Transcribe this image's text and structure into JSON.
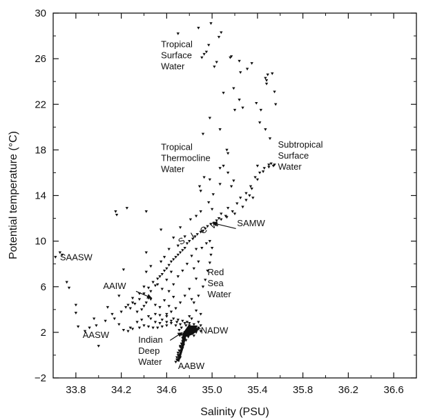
{
  "chart_data": {
    "type": "scatter",
    "title": "",
    "xlabel": "Salinity (PSU)",
    "ylabel": "Potential temperature (°C)",
    "xlim": [
      33.6,
      36.8
    ],
    "ylim": [
      -2,
      30
    ],
    "xticks": [
      33.8,
      34.2,
      34.6,
      35.0,
      35.4,
      35.8,
      36.2,
      36.6
    ],
    "xtick_labels": [
      "33.8",
      "34.2",
      "34.6",
      "35.0",
      "35.4",
      "35.8",
      "36.2",
      "36.6"
    ],
    "yticks": [
      -2,
      2,
      6,
      10,
      14,
      18,
      22,
      26,
      30
    ],
    "ytick_labels": [
      "−2",
      "2",
      "6",
      "10",
      "14",
      "18",
      "22",
      "26",
      "30"
    ],
    "grid": false,
    "marker_color": "#111111",
    "annotations": [
      {
        "lines": [
          "Tropical",
          "Surface",
          "Water"
        ],
        "x": 34.55,
        "y": 27.0,
        "anchor": "start"
      },
      {
        "lines": [
          "Tropical",
          "Thermocline",
          "Water"
        ],
        "x": 34.55,
        "y": 18.0,
        "anchor": "start"
      },
      {
        "lines": [
          "Subtropical",
          "Surface",
          "Water"
        ],
        "x": 35.58,
        "y": 18.2,
        "anchor": "start"
      },
      {
        "lines": [
          "SAMW"
        ],
        "x": 35.22,
        "y": 11.3,
        "anchor": "start"
      },
      {
        "lines": [
          "SAASW"
        ],
        "x": 33.66,
        "y": 8.3,
        "anchor": "start"
      },
      {
        "lines": [
          "AAIW"
        ],
        "x": 34.04,
        "y": 5.8,
        "anchor": "start"
      },
      {
        "lines": [
          "Red",
          "Sea",
          "Water"
        ],
        "x": 34.96,
        "y": 7.0,
        "anchor": "start"
      },
      {
        "lines": [
          "AASW"
        ],
        "x": 33.86,
        "y": 1.5,
        "anchor": "start"
      },
      {
        "lines": [
          "Indian",
          "Deep",
          "Water"
        ],
        "x": 34.35,
        "y": 1.1,
        "anchor": "start"
      },
      {
        "lines": [
          "NADW"
        ],
        "x": 34.9,
        "y": 1.9,
        "anchor": "start"
      },
      {
        "lines": [
          "AABW"
        ],
        "x": 34.7,
        "y": -1.2,
        "anchor": "start"
      },
      {
        "lines": [
          "S",
          "I",
          "C",
          "W"
        ],
        "x": 34.78,
        "y": 10.5,
        "anchor": "middle",
        "rotated": true
      }
    ],
    "arrows": [
      {
        "from": [
          35.21,
          11.1
        ],
        "to": [
          35.0,
          11.6
        ]
      },
      {
        "from": [
          34.33,
          5.6
        ],
        "to": [
          34.47,
          5.0
        ]
      },
      {
        "from": [
          34.9,
          2.3
        ],
        "to": [
          34.82,
          2.4
        ]
      },
      {
        "from": [
          34.63,
          1.3
        ],
        "to": [
          34.74,
          2.0
        ]
      }
    ],
    "points": [
      [
        34.88,
        28.7
      ],
      [
        34.7,
        28.2
      ],
      [
        34.99,
        29.1
      ],
      [
        34.97,
        27.2
      ],
      [
        35.08,
        28.3
      ],
      [
        35.06,
        27.9
      ],
      [
        34.93,
        26.4
      ],
      [
        34.95,
        26.6
      ],
      [
        34.91,
        26.1
      ],
      [
        35.04,
        25.7
      ],
      [
        35.02,
        25.3
      ],
      [
        35.16,
        26.1
      ],
      [
        35.17,
        26.2
      ],
      [
        35.24,
        25.8
      ],
      [
        35.31,
        25.1
      ],
      [
        35.35,
        25.6
      ],
      [
        35.25,
        24.8
      ],
      [
        35.19,
        23.4
      ],
      [
        35.1,
        23.0
      ],
      [
        35.24,
        22.4
      ],
      [
        35.27,
        21.7
      ],
      [
        35.2,
        21.5
      ],
      [
        35.39,
        22.1
      ],
      [
        35.43,
        21.5
      ],
      [
        35.47,
        24.3
      ],
      [
        35.48,
        24.1
      ],
      [
        35.48,
        23.8
      ],
      [
        35.49,
        24.6
      ],
      [
        35.53,
        24.7
      ],
      [
        35.55,
        23.1
      ],
      [
        35.56,
        22.0
      ],
      [
        35.42,
        20.4
      ],
      [
        35.47,
        19.8
      ],
      [
        35.51,
        19.0
      ],
      [
        34.98,
        20.8
      ],
      [
        34.92,
        19.4
      ],
      [
        35.07,
        19.8
      ],
      [
        35.13,
        18.0
      ],
      [
        35.14,
        17.7
      ],
      [
        35.07,
        16.4
      ],
      [
        35.1,
        16.6
      ],
      [
        35.14,
        16.0
      ],
      [
        35.07,
        15.0
      ],
      [
        35.17,
        14.8
      ],
      [
        35.19,
        15.3
      ],
      [
        35.4,
        16.6
      ],
      [
        35.45,
        16.1
      ],
      [
        35.5,
        16.7
      ],
      [
        35.52,
        16.8
      ],
      [
        35.55,
        16.7
      ],
      [
        35.4,
        15.4
      ],
      [
        35.35,
        14.6
      ],
      [
        35.33,
        14.0
      ],
      [
        35.3,
        13.6
      ],
      [
        35.36,
        13.8
      ],
      [
        35.27,
        13.0
      ],
      [
        35.2,
        12.4
      ],
      [
        35.12,
        12.2
      ],
      [
        35.08,
        11.9
      ],
      [
        35.06,
        12.0
      ],
      [
        35.02,
        11.6
      ],
      [
        34.96,
        11.3
      ],
      [
        34.94,
        11.1
      ],
      [
        34.9,
        10.8
      ],
      [
        34.85,
        10.4
      ],
      [
        34.8,
        10.0
      ],
      [
        34.76,
        9.4
      ],
      [
        34.72,
        9.0
      ],
      [
        34.68,
        8.6
      ],
      [
        34.64,
        8.2
      ],
      [
        34.6,
        7.6
      ],
      [
        34.56,
        7.1
      ],
      [
        34.52,
        6.7
      ],
      [
        34.5,
        6.1
      ],
      [
        34.46,
        5.6
      ],
      [
        34.44,
        5.0
      ],
      [
        34.42,
        4.6
      ],
      [
        34.4,
        4.3
      ],
      [
        34.38,
        4.0
      ],
      [
        34.9,
        12.6
      ],
      [
        34.97,
        13.4
      ],
      [
        35.01,
        14.1
      ],
      [
        34.9,
        14.4
      ],
      [
        34.89,
        14.8
      ],
      [
        34.98,
        15.4
      ],
      [
        34.93,
        15.6
      ],
      [
        35.0,
        12.8
      ],
      [
        34.86,
        12.2
      ],
      [
        34.81,
        11.9
      ],
      [
        34.72,
        11.2
      ],
      [
        34.76,
        10.4
      ],
      [
        34.66,
        10.3
      ],
      [
        34.7,
        9.6
      ],
      [
        34.62,
        9.3
      ],
      [
        34.58,
        8.6
      ],
      [
        34.55,
        8.2
      ],
      [
        34.46,
        7.8
      ],
      [
        34.42,
        7.3
      ],
      [
        34.52,
        6.2
      ],
      [
        34.4,
        6.0
      ],
      [
        34.36,
        5.4
      ],
      [
        34.3,
        5.0
      ],
      [
        34.3,
        4.6
      ],
      [
        34.24,
        4.2
      ],
      [
        34.2,
        3.8
      ],
      [
        34.12,
        3.6
      ],
      [
        34.06,
        3.0
      ],
      [
        33.98,
        2.6
      ],
      [
        33.96,
        3.2
      ],
      [
        33.92,
        2.4
      ],
      [
        33.88,
        2.1
      ],
      [
        33.82,
        2.5
      ],
      [
        33.8,
        3.7
      ],
      [
        33.8,
        4.4
      ],
      [
        33.74,
        5.9
      ],
      [
        33.72,
        6.4
      ],
      [
        33.68,
        8.8
      ],
      [
        33.66,
        9.0
      ],
      [
        33.62,
        8.6
      ],
      [
        34.0,
        0.8
      ],
      [
        34.08,
        4.2
      ],
      [
        34.14,
        3.2
      ],
      [
        34.18,
        2.7
      ],
      [
        34.22,
        2.2
      ],
      [
        34.28,
        2.4
      ],
      [
        34.34,
        2.9
      ],
      [
        34.38,
        3.1
      ],
      [
        34.44,
        3.4
      ],
      [
        34.5,
        3.6
      ],
      [
        34.54,
        3.5
      ],
      [
        34.6,
        3.4
      ],
      [
        34.66,
        3.2
      ],
      [
        34.7,
        3.1
      ],
      [
        34.74,
        3.0
      ],
      [
        34.78,
        2.9
      ],
      [
        34.8,
        2.8
      ],
      [
        34.84,
        2.7
      ],
      [
        34.86,
        2.5
      ],
      [
        34.88,
        2.3
      ],
      [
        34.9,
        2.1
      ],
      [
        34.76,
        2.0
      ],
      [
        34.75,
        1.6
      ],
      [
        34.74,
        1.2
      ],
      [
        34.72,
        0.8
      ],
      [
        34.71,
        0.4
      ],
      [
        34.7,
        0.0
      ],
      [
        34.69,
        -0.4
      ],
      [
        34.68,
        -0.6
      ],
      [
        34.73,
        1.8
      ],
      [
        34.78,
        2.2
      ],
      [
        34.82,
        2.5
      ],
      [
        34.86,
        2.0
      ],
      [
        34.84,
        1.7
      ],
      [
        34.8,
        1.9
      ],
      [
        34.77,
        2.6
      ],
      [
        34.73,
        2.4
      ],
      [
        34.71,
        2.2
      ],
      [
        34.69,
        2.9
      ],
      [
        34.64,
        2.8
      ],
      [
        34.6,
        2.6
      ],
      [
        34.56,
        2.5
      ],
      [
        34.52,
        2.4
      ],
      [
        34.48,
        2.4
      ],
      [
        34.44,
        2.5
      ],
      [
        34.4,
        2.6
      ],
      [
        34.36,
        2.4
      ],
      [
        34.3,
        2.3
      ],
      [
        34.26,
        2.1
      ],
      [
        34.54,
        4.2
      ],
      [
        34.58,
        4.8
      ],
      [
        34.62,
        5.6
      ],
      [
        34.66,
        6.2
      ],
      [
        34.7,
        6.9
      ],
      [
        34.74,
        7.4
      ],
      [
        34.78,
        8.0
      ],
      [
        34.82,
        8.7
      ],
      [
        34.86,
        9.3
      ],
      [
        34.84,
        7.6
      ],
      [
        34.86,
        6.7
      ],
      [
        34.8,
        5.8
      ],
      [
        34.76,
        5.2
      ],
      [
        34.72,
        4.6
      ],
      [
        34.68,
        4.1
      ],
      [
        34.64,
        3.8
      ],
      [
        34.6,
        3.6
      ],
      [
        34.84,
        4.6
      ],
      [
        34.88,
        5.2
      ],
      [
        34.92,
        6.0
      ],
      [
        34.94,
        6.6
      ],
      [
        34.96,
        7.4
      ],
      [
        34.98,
        8.1
      ],
      [
        34.99,
        8.8
      ],
      [
        35.0,
        9.4
      ],
      [
        34.98,
        10.0
      ],
      [
        34.95,
        9.8
      ],
      [
        34.91,
        9.4
      ],
      [
        34.88,
        8.2
      ],
      [
        34.82,
        4.9
      ],
      [
        34.86,
        3.9
      ],
      [
        34.9,
        3.6
      ],
      [
        34.8,
        3.4
      ],
      [
        34.5,
        4.4
      ],
      [
        34.46,
        4.9
      ],
      [
        34.56,
        5.8
      ],
      [
        34.6,
        6.6
      ],
      [
        34.64,
        7.3
      ],
      [
        34.66,
        5.1
      ],
      [
        34.62,
        4.3
      ],
      [
        34.56,
        3.1
      ],
      [
        34.16,
        12.3
      ],
      [
        34.15,
        12.6
      ],
      [
        34.25,
        12.9
      ],
      [
        34.42,
        12.6
      ],
      [
        34.42,
        9.0
      ],
      [
        34.55,
        11.0
      ],
      [
        34.22,
        7.5
      ],
      [
        34.18,
        5.2
      ],
      [
        34.26,
        4.4
      ],
      [
        34.34,
        3.8
      ],
      [
        34.46,
        3.2
      ],
      [
        34.5,
        2.9
      ],
      [
        34.54,
        2.8
      ],
      [
        34.82,
        3.2
      ],
      [
        34.88,
        2.9
      ],
      [
        34.9,
        2.6
      ],
      [
        34.76,
        1.4
      ],
      [
        34.74,
        0.6
      ],
      [
        34.72,
        -0.2
      ],
      [
        35.08,
        12.4
      ],
      [
        35.14,
        12.9
      ],
      [
        35.22,
        13.3
      ],
      [
        35.25,
        13.8
      ],
      [
        35.3,
        14.2
      ],
      [
        35.34,
        14.8
      ],
      [
        35.38,
        15.6
      ],
      [
        35.42,
        16.0
      ],
      [
        35.46,
        16.4
      ],
      [
        35.5,
        16.5
      ],
      [
        35.54,
        16.6
      ],
      [
        35.18,
        12.6
      ],
      [
        35.13,
        12.1
      ],
      [
        35.04,
        11.8
      ],
      [
        34.99,
        11.5
      ],
      [
        34.92,
        10.9
      ],
      [
        34.87,
        10.6
      ],
      [
        34.83,
        10.2
      ],
      [
        34.78,
        9.8
      ],
      [
        34.74,
        9.2
      ],
      [
        34.7,
        8.8
      ],
      [
        34.66,
        8.4
      ],
      [
        34.62,
        7.9
      ],
      [
        34.58,
        7.4
      ],
      [
        34.54,
        6.9
      ],
      [
        34.48,
        6.4
      ],
      [
        34.44,
        5.9
      ],
      [
        34.4,
        5.4
      ],
      [
        34.36,
        4.9
      ],
      [
        34.32,
        4.5
      ],
      [
        34.28,
        4.1
      ],
      [
        34.6,
        2.9
      ],
      [
        34.64,
        3.0
      ],
      [
        34.68,
        2.6
      ],
      [
        34.72,
        2.7
      ],
      [
        34.76,
        2.8
      ],
      [
        34.8,
        2.6
      ],
      [
        34.84,
        2.4
      ],
      [
        34.88,
        2.4
      ],
      [
        34.86,
        2.2
      ],
      [
        34.82,
        2.0
      ],
      [
        34.78,
        1.8
      ],
      [
        34.76,
        1.7
      ],
      [
        34.74,
        1.5
      ],
      [
        34.73,
        1.0
      ],
      [
        34.72,
        0.7
      ],
      [
        34.7,
        0.2
      ],
      [
        34.69,
        -0.2
      ],
      [
        34.71,
        0.0
      ],
      [
        34.73,
        0.4
      ],
      [
        34.75,
        0.9
      ],
      [
        34.77,
        1.3
      ],
      [
        34.79,
        1.6
      ],
      [
        34.81,
        2.2
      ]
    ]
  }
}
